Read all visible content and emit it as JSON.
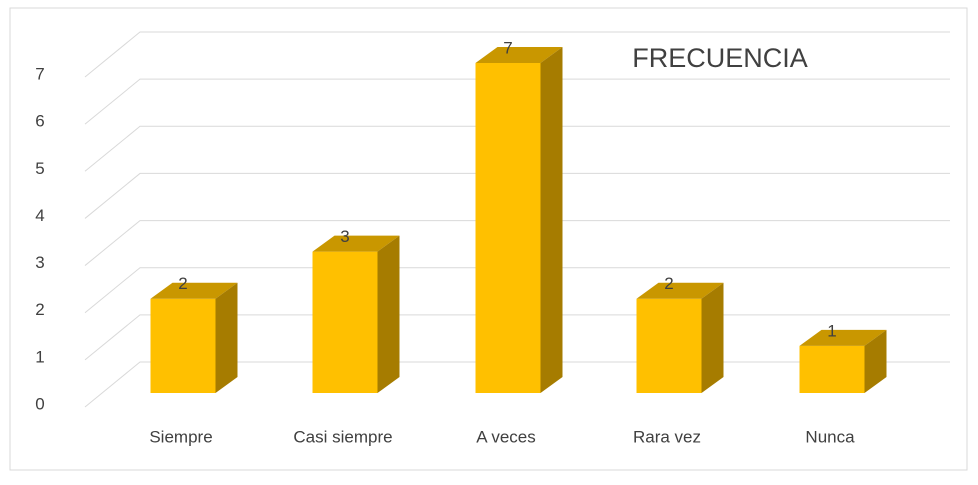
{
  "chart_data": {
    "type": "bar3d",
    "title": "FRECUENCIA",
    "categories": [
      "Siempre",
      "Casi siempre",
      "A veces",
      "Rara vez",
      "Nunca"
    ],
    "values": [
      2,
      3,
      7,
      2,
      1
    ],
    "color": "#ffc000",
    "top_color": "#c99700",
    "side_color": "#a67c00",
    "ylim": [
      0,
      7
    ],
    "yticks": [
      0,
      1,
      2,
      3,
      4,
      5,
      6,
      7
    ],
    "grid": true
  }
}
